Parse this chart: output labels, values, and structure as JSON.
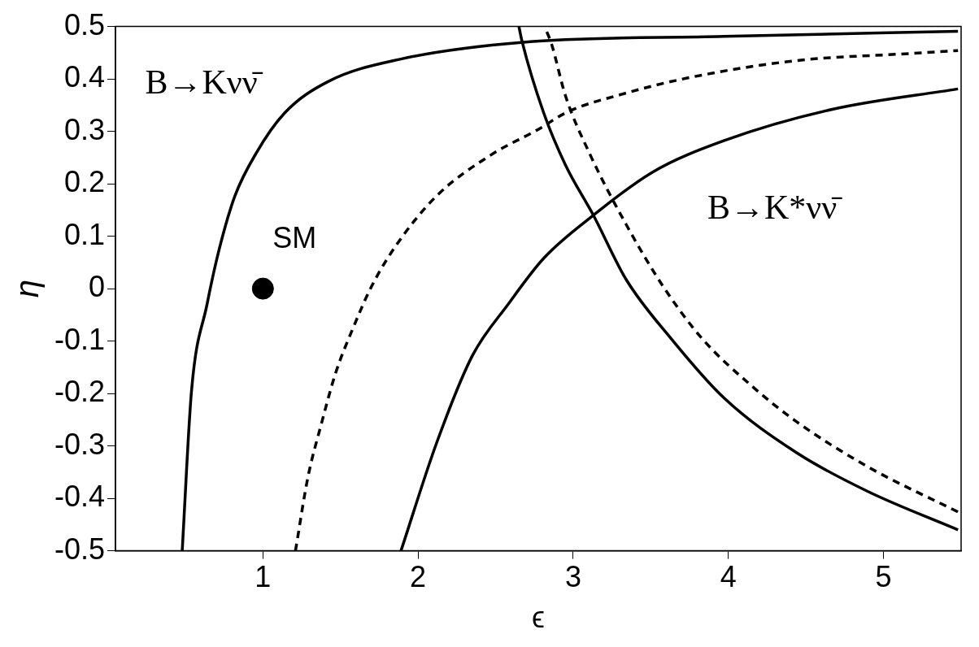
{
  "chart_data": {
    "type": "line",
    "xlabel": "ϵ",
    "ylabel": "η",
    "xlim": [
      0.05,
      5.5
    ],
    "ylim": [
      -0.5,
      0.5
    ],
    "xticks": [
      1,
      2,
      3,
      4,
      5
    ],
    "yticks": [
      -0.5,
      -0.4,
      -0.3,
      -0.2,
      -0.1,
      0,
      0.1,
      0.2,
      0.3,
      0.4,
      0.5
    ],
    "grid": false,
    "legend": false,
    "annotations": [
      "B→Kνν̄",
      "B→K*νν̄",
      {
        "text": "SM",
        "x": 1,
        "y": 0
      }
    ],
    "series": [
      {
        "color": "#000000",
        "line_style": "solid",
        "marker": "none",
        "x": [
          0.48,
          0.54,
          0.64,
          0.72,
          0.82,
          0.96,
          1.14,
          1.42,
          1.89,
          2.68,
          3.97,
          5.48
        ],
        "values": [
          -0.5,
          -0.195,
          -0.03,
          0.077,
          0.177,
          0.26,
          0.335,
          0.395,
          0.438,
          0.47,
          0.481,
          0.491
        ]
      },
      {
        "color": "#000000",
        "line_style": "dashed",
        "marker": "none",
        "x": [
          1.21,
          1.29,
          1.375,
          1.47,
          1.58,
          1.7,
          1.86,
          2.12,
          2.47,
          2.77,
          2.97,
          3.28,
          3.74,
          4.44,
          5.14,
          5.48
        ],
        "values": [
          -0.5,
          -0.36,
          -0.26,
          -0.16,
          -0.076,
          0.004,
          0.083,
          0.177,
          0.255,
          0.303,
          0.338,
          0.368,
          0.402,
          0.435,
          0.448,
          0.454
        ]
      },
      {
        "color": "#000000",
        "line_style": "solid",
        "marker": "none",
        "x": [
          1.89,
          2.12,
          2.35,
          2.58,
          2.81,
          3.13,
          3.51,
          3.97,
          4.67,
          5.48
        ],
        "values": [
          -0.5,
          -0.294,
          -0.128,
          -0.03,
          0.058,
          0.14,
          0.222,
          0.282,
          0.342,
          0.381
        ]
      },
      {
        "color": "#000000",
        "line_style": "solid",
        "marker": "none",
        "x": [
          2.65,
          2.67,
          2.81,
          2.95,
          3.13,
          3.34,
          3.63,
          3.97,
          4.44,
          4.9,
          5.48
        ],
        "values": [
          0.5,
          0.472,
          0.335,
          0.236,
          0.14,
          0.018,
          -0.095,
          -0.208,
          -0.313,
          -0.387,
          -0.46
        ]
      },
      {
        "color": "#000000",
        "line_style": "dashed",
        "marker": "none",
        "x": [
          2.83,
          2.86,
          2.95,
          3.11,
          3.34,
          3.58,
          3.83,
          4.16,
          4.44,
          4.9,
          5.48
        ],
        "values": [
          0.49,
          0.467,
          0.368,
          0.255,
          0.123,
          0.004,
          -0.095,
          -0.188,
          -0.254,
          -0.34,
          -0.426
        ]
      },
      {
        "type": "scatter",
        "color": "#000000",
        "marker": "circle",
        "x": [
          1
        ],
        "values": [
          0
        ]
      }
    ]
  }
}
